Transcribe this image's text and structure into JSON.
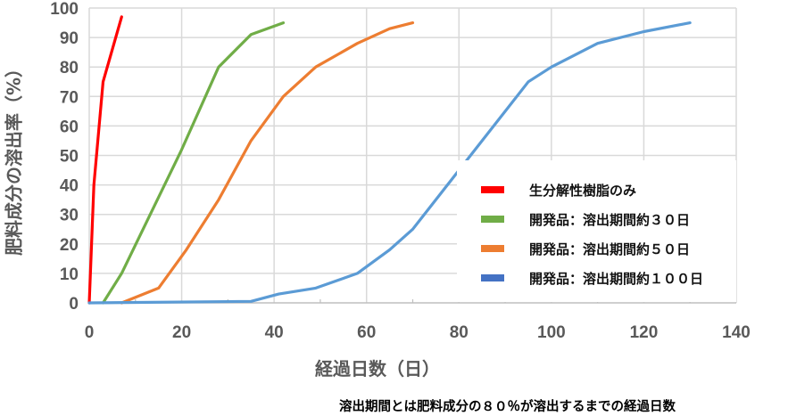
{
  "chart_data": {
    "type": "line",
    "title": "",
    "xlabel": "経過日数（日）",
    "ylabel": "肥料成分の溶出率（%）",
    "xlim": [
      0,
      140
    ],
    "ylim": [
      0,
      100
    ],
    "x_ticks": [
      0,
      20,
      40,
      60,
      80,
      100,
      120,
      140
    ],
    "y_ticks": [
      0,
      10,
      20,
      30,
      40,
      50,
      60,
      70,
      80,
      90,
      100
    ],
    "grid": true,
    "legend_position": "lower right (inside plot)",
    "series": [
      {
        "name": "生分解性樹脂のみ",
        "color": "#FF0000",
        "legend_color": "#FF0000",
        "x": [
          0,
          1,
          3,
          7
        ],
        "y": [
          0,
          40,
          75,
          97
        ]
      },
      {
        "name": "開発品：溶出期間約３０日",
        "color": "#70AD47",
        "legend_color": "#70AD47",
        "x": [
          3,
          7,
          20,
          28,
          35,
          42
        ],
        "y": [
          0,
          10,
          52,
          80,
          91,
          95
        ]
      },
      {
        "name": "開発品：溶出期間約５０日",
        "color": "#ED7D31",
        "legend_color": "#ED7D31",
        "x": [
          7,
          15,
          21,
          28,
          35,
          42,
          49,
          58,
          65,
          70
        ],
        "y": [
          0,
          5,
          18,
          35,
          55,
          70,
          80,
          88,
          93,
          95
        ]
      },
      {
        "name": "開発品：溶出期間約１００日",
        "color": "#5B9BD5",
        "legend_color": "#4472C4",
        "x": [
          0,
          35,
          41,
          49,
          58,
          65,
          70,
          95,
          100,
          110,
          120,
          130
        ],
        "y": [
          0,
          0.5,
          3,
          5,
          10,
          18,
          25,
          75,
          80,
          88,
          92,
          95
        ]
      }
    ],
    "annotations": [
      "溶出期間とは肥料成分の８０％が溶出するまでの経過日数"
    ]
  },
  "axes": {
    "x_title": "経過日数（日）",
    "y_title": "肥料成分の溶出率（%）"
  },
  "legend": {
    "items": [
      {
        "label": "生分解性樹脂のみ",
        "color": "#FF0000"
      },
      {
        "label": "開発品：溶出期間約３０日",
        "color": "#70AD47"
      },
      {
        "label": "開発品：溶出期間約５０日",
        "color": "#ED7D31"
      },
      {
        "label": "開発品：溶出期間約１００日",
        "color": "#4472C4"
      }
    ]
  },
  "footnote": "溶出期間とは肥料成分の８０％が溶出するまでの経過日数"
}
